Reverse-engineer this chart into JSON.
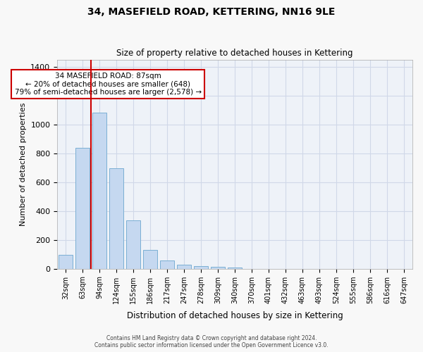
{
  "title": "34, MASEFIELD ROAD, KETTERING, NN16 9LE",
  "subtitle": "Size of property relative to detached houses in Kettering",
  "xlabel": "Distribution of detached houses by size in Kettering",
  "ylabel": "Number of detached properties",
  "categories": [
    "32sqm",
    "63sqm",
    "94sqm",
    "124sqm",
    "155sqm",
    "186sqm",
    "217sqm",
    "247sqm",
    "278sqm",
    "309sqm",
    "340sqm",
    "370sqm",
    "401sqm",
    "432sqm",
    "463sqm",
    "493sqm",
    "524sqm",
    "555sqm",
    "586sqm",
    "616sqm",
    "647sqm"
  ],
  "bar_values": [
    95,
    840,
    1080,
    695,
    335,
    130,
    55,
    28,
    20,
    14,
    8,
    0,
    0,
    0,
    0,
    0,
    0,
    0,
    0,
    0,
    0
  ],
  "bar_color": "#c5d8f0",
  "bar_edge_color": "#7bafd4",
  "property_line_x": 1,
  "property_sqm": 87,
  "annotation_title": "34 MASEFIELD ROAD: 87sqm",
  "annotation_line1": "← 20% of detached houses are smaller (648)",
  "annotation_line2": "79% of semi-detached houses are larger (2,578) →",
  "annotation_box_color": "#ffffff",
  "annotation_box_edge": "#cc0000",
  "vline_color": "#cc0000",
  "vline_x": 1.5,
  "ylim": [
    0,
    1450
  ],
  "yticks": [
    0,
    200,
    400,
    600,
    800,
    1000,
    1200,
    1400
  ],
  "grid_color": "#d0d8e8",
  "bg_color": "#eef2f8",
  "footer1": "Contains HM Land Registry data © Crown copyright and database right 2024.",
  "footer2": "Contains public sector information licensed under the Open Government Licence v3.0."
}
